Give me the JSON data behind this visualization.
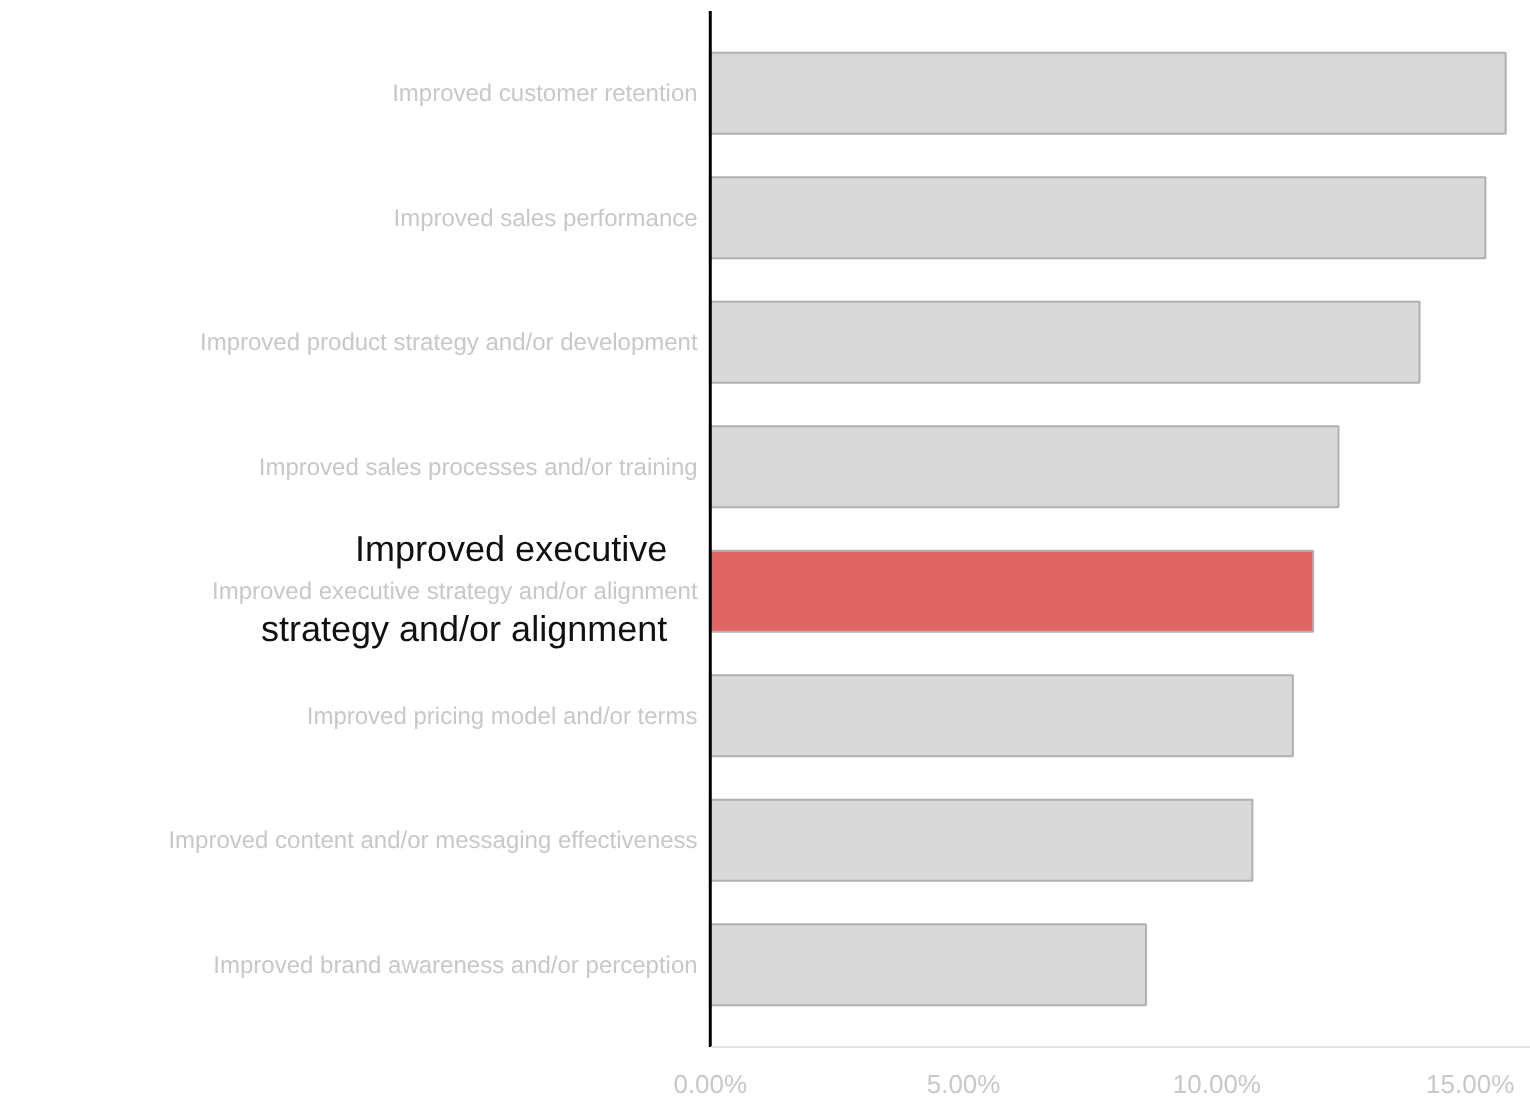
{
  "chart_data": {
    "type": "bar",
    "orientation": "horizontal",
    "categories": [
      "Improved customer retention",
      "Improved sales performance",
      "Improved product strategy and/or development",
      "Improved sales processes and/or training",
      "Improved executive strategy and/or alignment",
      "Improved pricing model and/or terms",
      "Improved content and/or messaging effectiveness",
      "Improved brand awareness and/or perception"
    ],
    "values": [
      15.7,
      15.3,
      14.0,
      12.4,
      11.9,
      11.5,
      10.7,
      8.6
    ],
    "colors": [
      "#d9d9d9",
      "#d9d9d9",
      "#d9d9d9",
      "#d9d9d9",
      "#e06666",
      "#d9d9d9",
      "#d9d9d9",
      "#d9d9d9"
    ],
    "xlim": [
      0,
      16.2
    ],
    "xticks": [
      {
        "value": 0,
        "label": "0.00%"
      },
      {
        "value": 5,
        "label": "5.00%"
      },
      {
        "value": 10,
        "label": "10.00%"
      },
      {
        "value": 15,
        "label": "15.00%"
      }
    ],
    "grid": false,
    "annotations": [
      "Improved executive\nstrategy and/or alignment"
    ]
  }
}
